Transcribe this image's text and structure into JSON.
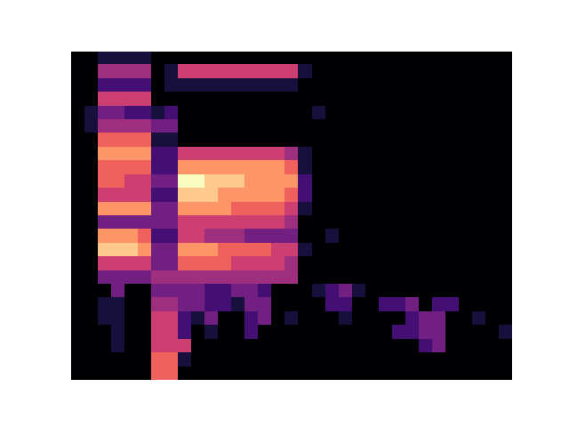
{
  "chart_data": {
    "type": "heatmap",
    "color": "magma",
    "tick_labels": false,
    "clim": [
      0,
      9
    ],
    "cells": [
      [
        0,
        0,
        1,
        1,
        1,
        1,
        0,
        0,
        0,
        0,
        0,
        0,
        0,
        0,
        0,
        0,
        0,
        0,
        0,
        0,
        0,
        0,
        0,
        0,
        0,
        0,
        0,
        0,
        0,
        0,
        0,
        0,
        0
      ],
      [
        0,
        0,
        4,
        4,
        4,
        4,
        0,
        1,
        5,
        5,
        5,
        5,
        5,
        5,
        5,
        5,
        5,
        1,
        0,
        0,
        0,
        0,
        0,
        0,
        0,
        0,
        0,
        0,
        0,
        0,
        0,
        0,
        0
      ],
      [
        0,
        0,
        2,
        2,
        2,
        2,
        0,
        1,
        1,
        1,
        1,
        1,
        1,
        1,
        1,
        1,
        1,
        0,
        0,
        0,
        0,
        0,
        0,
        0,
        0,
        0,
        0,
        0,
        0,
        0,
        0,
        0,
        0
      ],
      [
        0,
        0,
        5,
        5,
        5,
        5,
        0,
        0,
        0,
        0,
        0,
        0,
        0,
        0,
        0,
        0,
        0,
        0,
        0,
        0,
        0,
        0,
        0,
        0,
        0,
        0,
        0,
        0,
        0,
        0,
        0,
        0,
        0
      ],
      [
        0,
        1,
        3,
        3,
        2,
        2,
        1,
        2,
        0,
        0,
        0,
        0,
        0,
        0,
        0,
        0,
        0,
        0,
        1,
        0,
        0,
        0,
        0,
        0,
        0,
        0,
        0,
        0,
        0,
        0,
        0,
        0,
        0
      ],
      [
        0,
        1,
        4,
        4,
        4,
        4,
        3,
        3,
        0,
        0,
        0,
        0,
        0,
        0,
        0,
        0,
        0,
        0,
        0,
        0,
        0,
        0,
        0,
        0,
        0,
        0,
        0,
        0,
        0,
        0,
        0,
        0,
        0
      ],
      [
        0,
        0,
        6,
        6,
        6,
        6,
        1,
        1,
        0,
        0,
        0,
        0,
        0,
        0,
        0,
        0,
        0,
        0,
        0,
        0,
        0,
        0,
        0,
        0,
        0,
        0,
        0,
        0,
        0,
        0,
        0,
        0,
        0
      ],
      [
        0,
        0,
        7,
        7,
        7,
        7,
        2,
        2,
        5,
        5,
        5,
        5,
        5,
        5,
        5,
        5,
        4,
        1,
        0,
        0,
        0,
        0,
        0,
        0,
        0,
        0,
        0,
        0,
        0,
        0,
        0,
        0,
        0
      ],
      [
        0,
        0,
        6,
        6,
        6,
        6,
        2,
        2,
        7,
        7,
        7,
        7,
        7,
        7,
        7,
        7,
        6,
        1,
        0,
        0,
        0,
        0,
        0,
        0,
        0,
        0,
        0,
        0,
        0,
        0,
        0,
        0,
        0
      ],
      [
        0,
        0,
        6,
        6,
        5,
        5,
        3,
        3,
        9,
        9,
        8,
        8,
        8,
        7,
        7,
        7,
        7,
        2,
        0,
        0,
        0,
        0,
        0,
        0,
        0,
        0,
        0,
        0,
        0,
        0,
        0,
        0,
        0
      ],
      [
        0,
        0,
        5,
        5,
        5,
        5,
        2,
        2,
        8,
        8,
        8,
        7,
        7,
        7,
        7,
        7,
        6,
        2,
        0,
        0,
        0,
        0,
        0,
        0,
        0,
        0,
        0,
        0,
        0,
        0,
        0,
        0,
        0
      ],
      [
        0,
        0,
        7,
        7,
        7,
        7,
        3,
        3,
        7,
        7,
        7,
        7,
        6,
        6,
        6,
        6,
        5,
        1,
        0,
        0,
        0,
        0,
        0,
        0,
        0,
        0,
        0,
        0,
        0,
        0,
        0,
        0,
        0
      ],
      [
        0,
        0,
        3,
        3,
        3,
        3,
        3,
        3,
        5,
        5,
        5,
        5,
        5,
        5,
        5,
        5,
        4,
        0,
        0,
        0,
        0,
        0,
        0,
        0,
        0,
        0,
        0,
        0,
        0,
        0,
        0,
        0,
        0
      ],
      [
        0,
        0,
        7,
        7,
        7,
        6,
        2,
        2,
        5,
        5,
        4,
        4,
        4,
        3,
        3,
        3,
        3,
        0,
        0,
        1,
        0,
        0,
        0,
        0,
        0,
        0,
        0,
        0,
        0,
        0,
        0,
        0,
        0
      ],
      [
        0,
        0,
        8,
        8,
        8,
        7,
        3,
        3,
        7,
        7,
        7,
        6,
        6,
        6,
        6,
        5,
        5,
        1,
        0,
        0,
        0,
        0,
        0,
        0,
        0,
        0,
        0,
        0,
        0,
        0,
        0,
        0,
        0
      ],
      [
        0,
        0,
        5,
        5,
        5,
        5,
        3,
        3,
        6,
        6,
        6,
        6,
        5,
        5,
        5,
        5,
        4,
        0,
        0,
        0,
        0,
        0,
        0,
        0,
        0,
        0,
        0,
        0,
        0,
        0,
        0,
        0,
        0
      ],
      [
        0,
        0,
        3,
        3,
        3,
        3,
        4,
        4,
        4,
        4,
        4,
        4,
        4,
        4,
        4,
        4,
        4,
        0,
        0,
        0,
        0,
        0,
        0,
        0,
        0,
        0,
        0,
        0,
        0,
        0,
        0,
        0,
        0
      ],
      [
        0,
        0,
        0,
        3,
        0,
        0,
        3,
        3,
        3,
        3,
        2,
        2,
        3,
        3,
        2,
        0,
        0,
        0,
        1,
        2,
        3,
        1,
        0,
        0,
        0,
        0,
        0,
        0,
        0,
        0,
        0,
        0,
        0
      ],
      [
        0,
        0,
        1,
        1,
        0,
        0,
        4,
        4,
        3,
        3,
        2,
        2,
        1,
        3,
        3,
        0,
        0,
        0,
        0,
        2,
        2,
        0,
        0,
        2,
        2,
        3,
        0,
        2,
        2,
        0,
        0,
        0,
        0
      ],
      [
        0,
        0,
        1,
        1,
        0,
        0,
        5,
        5,
        2,
        1,
        3,
        0,
        0,
        2,
        3,
        0,
        1,
        0,
        0,
        0,
        1,
        0,
        0,
        0,
        0,
        2,
        3,
        3,
        0,
        0,
        1,
        0,
        0
      ],
      [
        0,
        0,
        0,
        1,
        0,
        0,
        5,
        5,
        2,
        0,
        1,
        0,
        0,
        2,
        0,
        0,
        0,
        0,
        0,
        0,
        0,
        0,
        0,
        0,
        2,
        2,
        3,
        3,
        0,
        0,
        0,
        0,
        1
      ],
      [
        0,
        0,
        0,
        1,
        0,
        0,
        5,
        5,
        5,
        0,
        0,
        0,
        0,
        0,
        0,
        0,
        0,
        0,
        0,
        0,
        0,
        0,
        0,
        0,
        0,
        0,
        2,
        3,
        0,
        0,
        0,
        0,
        0
      ],
      [
        0,
        0,
        0,
        0,
        0,
        0,
        6,
        6,
        1,
        0,
        0,
        0,
        0,
        0,
        0,
        0,
        0,
        0,
        0,
        0,
        0,
        0,
        0,
        0,
        0,
        0,
        0,
        0,
        0,
        0,
        0,
        0,
        0
      ],
      [
        0,
        0,
        0,
        0,
        0,
        0,
        6,
        6,
        0,
        0,
        0,
        0,
        0,
        0,
        0,
        0,
        0,
        0,
        0,
        0,
        0,
        0,
        0,
        0,
        0,
        0,
        0,
        0,
        0,
        0,
        0,
        0,
        0
      ]
    ]
  }
}
